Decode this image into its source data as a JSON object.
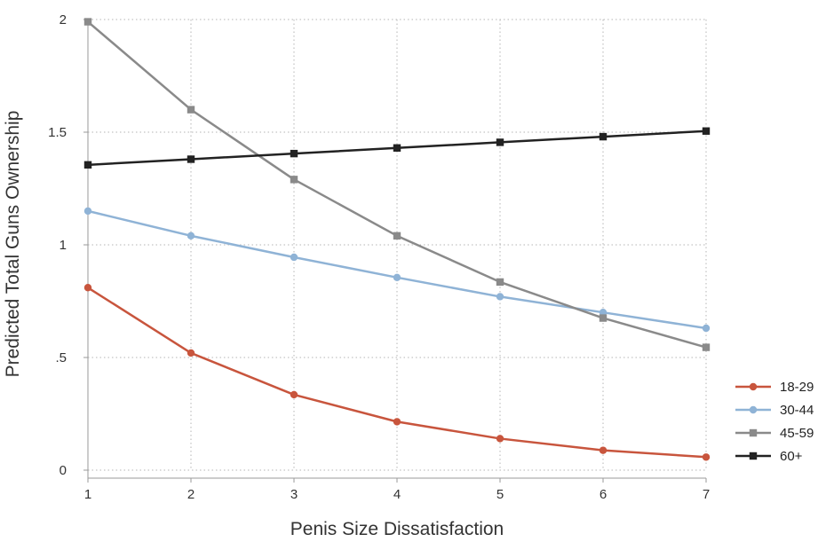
{
  "chart_data": {
    "type": "line",
    "title": "",
    "xlabel": "Penis Size Dissatisfaction",
    "ylabel": "Predicted Total Guns Ownership",
    "x": [
      1,
      2,
      3,
      4,
      5,
      6,
      7
    ],
    "xticks": [
      "1",
      "2",
      "3",
      "4",
      "5",
      "6",
      "7"
    ],
    "yticks": [
      {
        "value": 0,
        "label": "0"
      },
      {
        "value": 0.5,
        "label": ".5"
      },
      {
        "value": 1,
        "label": "1"
      },
      {
        "value": 1.5,
        "label": "1.5"
      },
      {
        "value": 2,
        "label": "2"
      }
    ],
    "xlim": [
      1,
      7
    ],
    "ylim": [
      0,
      2
    ],
    "grid": true,
    "legend_position": "right-bottom",
    "series": [
      {
        "name": "18-29",
        "color": "#c8553d",
        "marker": "circle",
        "values": [
          0.81,
          0.52,
          0.335,
          0.215,
          0.14,
          0.088,
          0.058
        ]
      },
      {
        "name": "30-44",
        "color": "#8fb3d6",
        "marker": "circle",
        "values": [
          1.15,
          1.04,
          0.945,
          0.855,
          0.77,
          0.7,
          0.63
        ]
      },
      {
        "name": "45-59",
        "color": "#8a8a8a",
        "marker": "square",
        "values": [
          1.99,
          1.6,
          1.29,
          1.04,
          0.835,
          0.675,
          0.545
        ]
      },
      {
        "name": "60+",
        "color": "#222222",
        "marker": "square",
        "values": [
          1.355,
          1.38,
          1.405,
          1.43,
          1.455,
          1.48,
          1.505
        ]
      }
    ]
  }
}
